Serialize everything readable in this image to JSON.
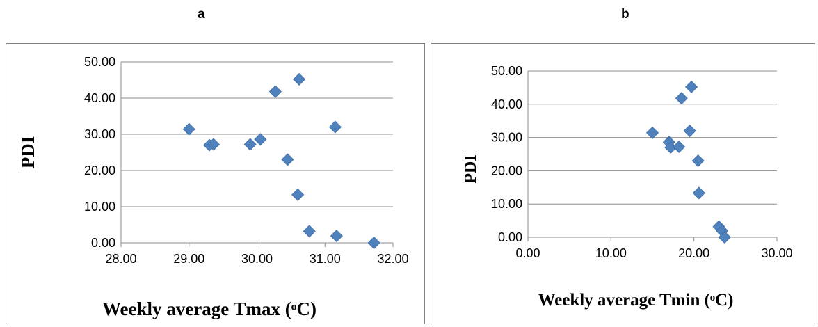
{
  "panels": [
    {
      "letter": "a"
    },
    {
      "letter": "b"
    }
  ],
  "chart_data": [
    {
      "type": "scatter",
      "panel": "a",
      "xlabel": "Weekly average Tmax (ᵒC)",
      "ylabel": "PDI",
      "xlim": [
        28,
        32
      ],
      "ylim": [
        0,
        50
      ],
      "xticks": [
        "28.00",
        "29.00",
        "30.00",
        "31.00",
        "32.00"
      ],
      "yticks": [
        "0.00",
        "10.00",
        "20.00",
        "30.00",
        "40.00",
        "50.00"
      ],
      "grid": "horizontal",
      "marker_color": "#4f81bd",
      "points": [
        {
          "x": 29.0,
          "y": 31.4
        },
        {
          "x": 29.3,
          "y": 27.0
        },
        {
          "x": 29.36,
          "y": 27.2
        },
        {
          "x": 29.9,
          "y": 27.2
        },
        {
          "x": 30.05,
          "y": 28.6
        },
        {
          "x": 30.27,
          "y": 41.8
        },
        {
          "x": 30.45,
          "y": 23.0
        },
        {
          "x": 30.6,
          "y": 13.3
        },
        {
          "x": 30.62,
          "y": 45.2
        },
        {
          "x": 30.77,
          "y": 3.2
        },
        {
          "x": 31.15,
          "y": 32.0
        },
        {
          "x": 31.17,
          "y": 1.9
        },
        {
          "x": 31.72,
          "y": 0.0
        }
      ]
    },
    {
      "type": "scatter",
      "panel": "b",
      "xlabel": "Weekly average Tmin (ᵒC)",
      "ylabel": "PDI",
      "xlim": [
        0,
        30
      ],
      "ylim": [
        0,
        50
      ],
      "xticks": [
        "0.00",
        "10.00",
        "20.00",
        "30.00"
      ],
      "yticks": [
        "0.00",
        "10.00",
        "20.00",
        "30.00",
        "40.00",
        "50.00"
      ],
      "grid": "horizontal",
      "marker_color": "#4f81bd",
      "points": [
        {
          "x": 15.0,
          "y": 31.4
        },
        {
          "x": 17.0,
          "y": 28.6
        },
        {
          "x": 17.2,
          "y": 27.0
        },
        {
          "x": 18.2,
          "y": 27.2
        },
        {
          "x": 18.5,
          "y": 41.8
        },
        {
          "x": 19.5,
          "y": 32.0
        },
        {
          "x": 19.7,
          "y": 45.2
        },
        {
          "x": 20.5,
          "y": 23.0
        },
        {
          "x": 20.6,
          "y": 13.3
        },
        {
          "x": 23.0,
          "y": 3.2
        },
        {
          "x": 23.4,
          "y": 1.9
        },
        {
          "x": 23.7,
          "y": 0.0
        }
      ]
    }
  ]
}
